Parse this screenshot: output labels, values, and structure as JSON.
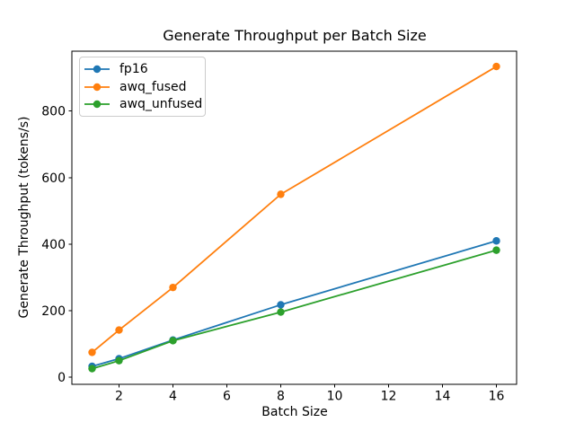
{
  "window": {
    "background": "#ffffff"
  },
  "chart_data": {
    "type": "line",
    "title": "Generate Throughput per Batch Size",
    "xlabel": "Batch Size",
    "ylabel": "Generate Throughput (tokens/s)",
    "x": [
      1,
      2,
      4,
      8,
      16
    ],
    "series": [
      {
        "name": "fp16",
        "color": "#1f77b4",
        "values": [
          33,
          56,
          112,
          218,
          410
        ]
      },
      {
        "name": "awq_fused",
        "color": "#ff7f0e",
        "values": [
          75,
          142,
          270,
          550,
          934
        ]
      },
      {
        "name": "awq_unfused",
        "color": "#2ca02c",
        "values": [
          26,
          50,
          110,
          196,
          382
        ]
      }
    ],
    "xticks": [
      2,
      4,
      6,
      8,
      10,
      12,
      14,
      16
    ],
    "yticks": [
      0,
      200,
      400,
      600,
      800
    ],
    "xlim": [
      0.25,
      16.75
    ],
    "ylim": [
      -21,
      980
    ],
    "grid": false,
    "legend_position": "upper left",
    "marker": "o",
    "line_width": 1.8,
    "marker_radius": 4.2,
    "axis_color": "#000000"
  }
}
